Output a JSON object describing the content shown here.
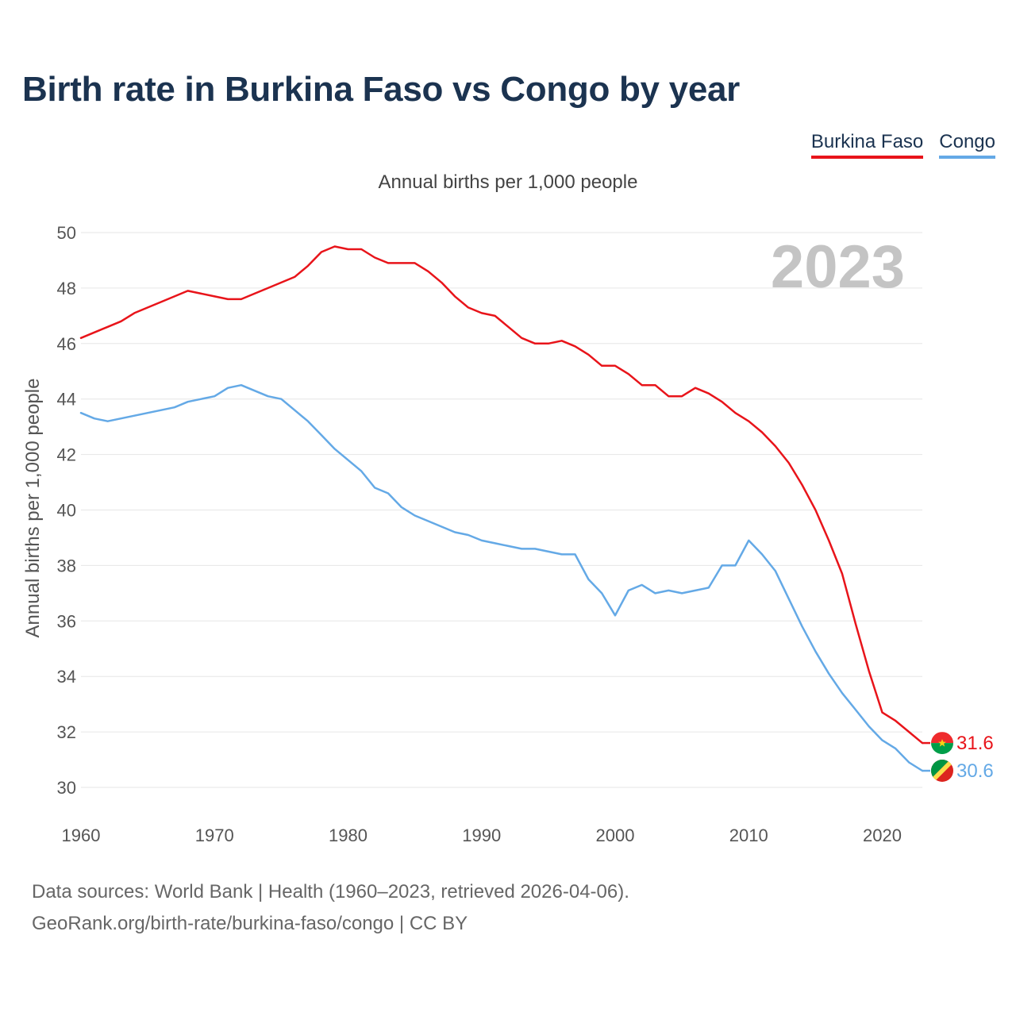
{
  "header": {
    "title": "Birth rate in Burkina Faso vs Congo by year",
    "subtitle": "Annual births per 1,000 people"
  },
  "legend": [
    {
      "name": "Burkina Faso",
      "color": "#e8141a"
    },
    {
      "name": "Congo",
      "color": "#64a9e6"
    }
  ],
  "footer": {
    "line1": "Data sources: World Bank | Health (1960–2023, retrieved 2026-04-06).",
    "line2": "GeoRank.org/birth-rate/burkina-faso/congo | CC BY"
  },
  "chart_data": {
    "type": "line",
    "ylabel": "Annual births per 1,000 people",
    "year_label": "2023",
    "xlim": [
      1960,
      2023
    ],
    "ylim": [
      30,
      50
    ],
    "x_ticks": [
      1960,
      1970,
      1980,
      1990,
      2000,
      2010,
      2020
    ],
    "y_ticks": [
      30,
      32,
      34,
      36,
      38,
      40,
      42,
      44,
      46,
      48,
      50
    ],
    "grid": true,
    "legend_position": "top-right",
    "x": [
      1960,
      1961,
      1962,
      1963,
      1964,
      1965,
      1966,
      1967,
      1968,
      1969,
      1970,
      1971,
      1972,
      1973,
      1974,
      1975,
      1976,
      1977,
      1978,
      1979,
      1980,
      1981,
      1982,
      1983,
      1984,
      1985,
      1986,
      1987,
      1988,
      1989,
      1990,
      1991,
      1992,
      1993,
      1994,
      1995,
      1996,
      1997,
      1998,
      1999,
      2000,
      2001,
      2002,
      2003,
      2004,
      2005,
      2006,
      2007,
      2008,
      2009,
      2010,
      2011,
      2012,
      2013,
      2014,
      2015,
      2016,
      2017,
      2018,
      2019,
      2020,
      2021,
      2022,
      2023
    ],
    "series": [
      {
        "name": "Burkina Faso",
        "color": "#e8141a",
        "end_label": "31.6",
        "values": [
          46.2,
          46.4,
          46.6,
          46.8,
          47.1,
          47.3,
          47.5,
          47.7,
          47.9,
          47.8,
          47.7,
          47.6,
          47.6,
          47.8,
          48.0,
          48.2,
          48.4,
          48.8,
          49.3,
          49.5,
          49.4,
          49.4,
          49.1,
          48.9,
          48.9,
          48.9,
          48.6,
          48.2,
          47.7,
          47.3,
          47.1,
          47.0,
          46.6,
          46.2,
          46.0,
          46.0,
          46.1,
          45.9,
          45.6,
          45.2,
          45.2,
          44.9,
          44.5,
          44.5,
          44.1,
          44.1,
          44.4,
          44.2,
          43.9,
          43.5,
          43.2,
          42.8,
          42.3,
          41.7,
          40.9,
          40.0,
          38.9,
          37.7,
          35.9,
          34.2,
          32.7,
          32.4,
          32.0,
          31.6
        ]
      },
      {
        "name": "Congo",
        "color": "#64a9e6",
        "end_label": "30.6",
        "values": [
          43.5,
          43.3,
          43.2,
          43.3,
          43.4,
          43.5,
          43.6,
          43.7,
          43.9,
          44.0,
          44.1,
          44.4,
          44.5,
          44.3,
          44.1,
          44.0,
          43.6,
          43.2,
          42.7,
          42.2,
          41.8,
          41.4,
          40.8,
          40.6,
          40.1,
          39.8,
          39.6,
          39.4,
          39.2,
          39.1,
          38.9,
          38.8,
          38.7,
          38.6,
          38.6,
          38.5,
          38.4,
          38.4,
          37.5,
          37.0,
          36.2,
          37.1,
          37.3,
          37.0,
          37.1,
          37.0,
          37.1,
          37.2,
          38.0,
          38.0,
          38.9,
          38.4,
          37.8,
          36.8,
          35.8,
          34.9,
          34.1,
          33.4,
          32.8,
          32.2,
          31.7,
          31.4,
          30.9,
          30.6
        ]
      }
    ]
  }
}
